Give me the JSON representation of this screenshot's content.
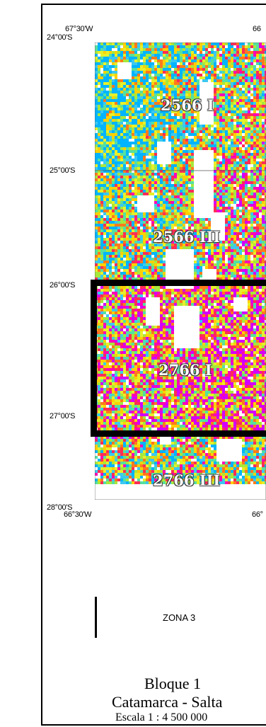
{
  "lon_labels": {
    "top_left": "67°30'W",
    "top_right": "66",
    "bottom_left": "66°30'W",
    "bottom_right": "66°"
  },
  "lat_labels": [
    "24°00'S",
    "25°00'S",
    "26°00'S",
    "27°00'S",
    "28°00'S"
  ],
  "hojas": [
    "2566 I",
    "2566 III",
    "2766 I",
    "2766 III"
  ],
  "zona_label": "ZONA 3",
  "block_title": "Bloque 1",
  "region": "Catamarca - Salta",
  "scale": "Escala 1 : 4 500 000",
  "palette": [
    "#00b4ff",
    "#3cc8f0",
    "#55e0a0",
    "#a6e83c",
    "#e6f02a",
    "#ffd000",
    "#ff7a1c",
    "#ff2d55",
    "#ff00b4",
    "#d200ff"
  ]
}
